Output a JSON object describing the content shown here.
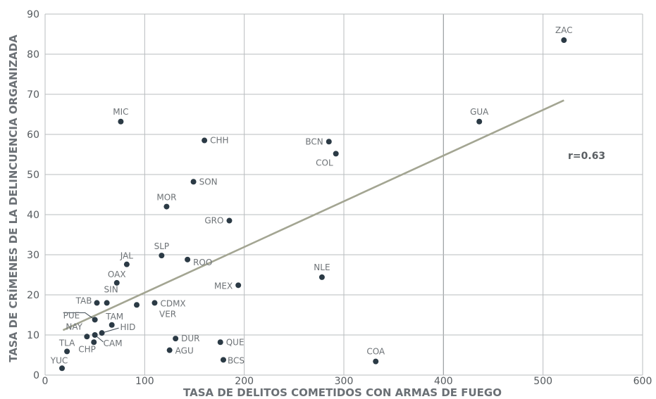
{
  "chart_data": {
    "type": "scatter",
    "xlabel": "TASA DE DELITOS COMETIDOS CON ARMAS DE FUEGO",
    "ylabel": "TASA DE CRÍMENES DE LA DELINCUENCIA ORGANIZADA",
    "xlim": [
      0,
      600
    ],
    "ylim": [
      0,
      90
    ],
    "x_ticks": [
      "0",
      "100",
      "200",
      "300",
      "400",
      "500",
      "600"
    ],
    "y_ticks": [
      "0",
      "10",
      "20",
      "30",
      "40",
      "50",
      "60",
      "70",
      "80",
      "90"
    ],
    "grid": true,
    "annotation": "r=0.63",
    "trendline": {
      "x_start": 18,
      "y_start": 11.2,
      "x_end": 521,
      "y_end": 68.5
    },
    "points": [
      {
        "label": "ZAC",
        "x": 521,
        "y": 83.5
      },
      {
        "label": "GUA",
        "x": 436,
        "y": 63.2
      },
      {
        "label": "MIC",
        "x": 76,
        "y": 63.2
      },
      {
        "label": "BCN",
        "x": 285,
        "y": 58.2
      },
      {
        "label": "CHH",
        "x": 160,
        "y": 58.5
      },
      {
        "label": "COL",
        "x": 292,
        "y": 55.2
      },
      {
        "label": "SON",
        "x": 149,
        "y": 48.2
      },
      {
        "label": "MOR",
        "x": 122,
        "y": 42.0
      },
      {
        "label": "GRO",
        "x": 185,
        "y": 38.5
      },
      {
        "label": "SLP",
        "x": 117,
        "y": 29.8
      },
      {
        "label": "ROO",
        "x": 143,
        "y": 28.8
      },
      {
        "label": "JAL",
        "x": 82,
        "y": 27.6
      },
      {
        "label": "NLE",
        "x": 278,
        "y": 24.4
      },
      {
        "label": "OAX",
        "x": 72,
        "y": 23.0
      },
      {
        "label": "MEX",
        "x": 194,
        "y": 22.4
      },
      {
        "label": "SIN",
        "x": 62,
        "y": 18.0
      },
      {
        "label": "TAB",
        "x": 52,
        "y": 18.0
      },
      {
        "label": "CDMX",
        "x": 110,
        "y": 18.0
      },
      {
        "label": "VER",
        "x": 92,
        "y": 17.5
      },
      {
        "label": "PUE",
        "x": 50,
        "y": 13.8
      },
      {
        "label": "TAM",
        "x": 67,
        "y": 12.5
      },
      {
        "label": "HID",
        "x": 57,
        "y": 10.5
      },
      {
        "label": "NAY",
        "x": 42,
        "y": 9.6
      },
      {
        "label": "CAM",
        "x": 50,
        "y": 10.0
      },
      {
        "label": "CHP",
        "x": 49,
        "y": 8.2
      },
      {
        "label": "DUR",
        "x": 131,
        "y": 9.1
      },
      {
        "label": "QUE",
        "x": 176,
        "y": 8.2
      },
      {
        "label": "AGU",
        "x": 125,
        "y": 6.2
      },
      {
        "label": "TLA",
        "x": 22,
        "y": 5.9
      },
      {
        "label": "BCS",
        "x": 179,
        "y": 3.8
      },
      {
        "label": "COA",
        "x": 332,
        "y": 3.4
      },
      {
        "label": "YUC",
        "x": 17,
        "y": 1.7
      }
    ],
    "colors": {
      "point": "#2b3a45",
      "trend": "#a3a592",
      "grid": "#b9bcbf"
    }
  }
}
